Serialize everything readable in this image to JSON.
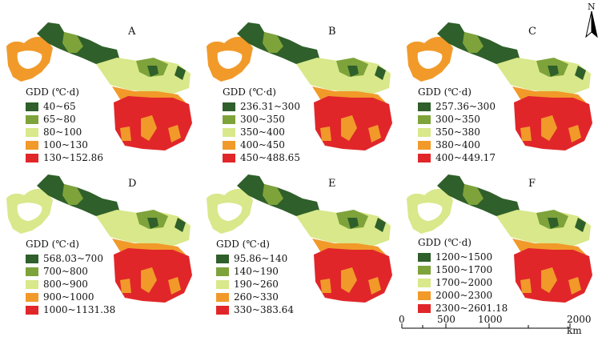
{
  "colors": {
    "c1": "#2f5f2a",
    "c2": "#7ea33a",
    "c3": "#d8e88a",
    "c4": "#f19a2a",
    "c5": "#e1262a"
  },
  "north_label": "N",
  "scale": {
    "ticks": [
      "0",
      "500",
      "1000",
      "2000 km"
    ],
    "unit": "km"
  },
  "panels": [
    {
      "label": "A",
      "legend_title": "GDD (℃·d)",
      "classes": [
        "40~65",
        "65~80",
        "80~100",
        "100~130",
        "130~152.86"
      ]
    },
    {
      "label": "B",
      "legend_title": "GDD (℃·d)",
      "classes": [
        "236.31~300",
        "300~350",
        "350~400",
        "400~450",
        "450~488.65"
      ]
    },
    {
      "label": "C",
      "legend_title": "GDD (℃·d)",
      "classes": [
        "257.36~300",
        "300~350",
        "350~380",
        "380~400",
        "400~449.17"
      ]
    },
    {
      "label": "D",
      "legend_title": "GDD (℃·d)",
      "classes": [
        "568.03~700",
        "700~800",
        "800~900",
        "900~1000",
        "1000~1131.38"
      ]
    },
    {
      "label": "E",
      "legend_title": "GDD (℃·d)",
      "classes": [
        "95.86~140",
        "140~190",
        "190~260",
        "260~330",
        "330~383.64"
      ]
    },
    {
      "label": "F",
      "legend_title": "GDD (℃·d)",
      "classes": [
        "1200~1500",
        "1500~1700",
        "1700~2000",
        "2000~2300",
        "2300~2601.18"
      ]
    }
  ]
}
